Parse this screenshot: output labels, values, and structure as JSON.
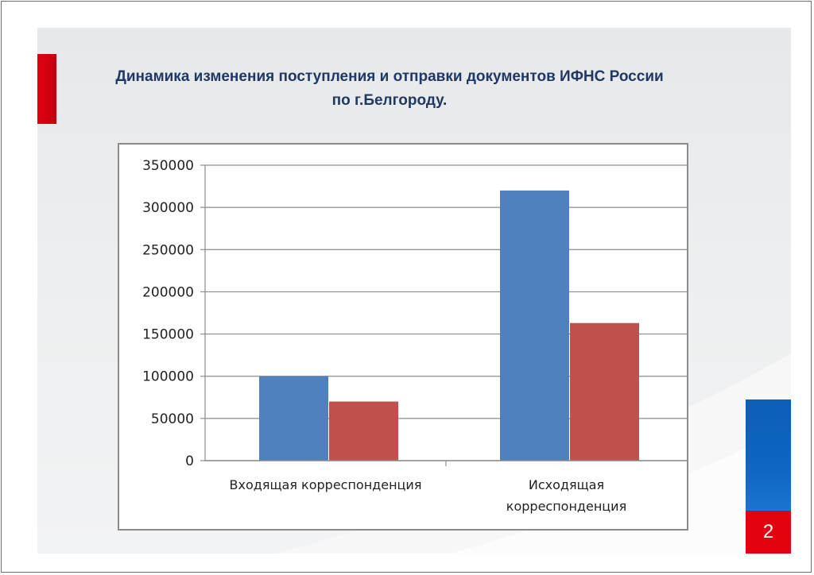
{
  "slide": {
    "title_line1": "Динамика изменения поступления и отправки документов ИФНС России",
    "title_line2": "по г.Белгороду.",
    "page_number": "2"
  },
  "colors": {
    "accent_red": "#e3000f",
    "accent_blue": "#0e66c2",
    "title": "#1f3864"
  },
  "chart_data": {
    "type": "bar",
    "title": "",
    "xlabel": "",
    "ylabel": "",
    "categories": [
      [
        "Входящая  корреспонденция"
      ],
      [
        "Исходящая",
        "корреспонденция"
      ]
    ],
    "series": [
      {
        "color": "#4f81bd",
        "values": [
          100000,
          320000
        ]
      },
      {
        "color": "#c0504d",
        "values": [
          70000,
          163000
        ]
      }
    ],
    "ylim": [
      0,
      350000
    ],
    "yticks": [
      0,
      50000,
      100000,
      150000,
      200000,
      250000,
      300000,
      350000
    ],
    "grid": true,
    "legend": "none"
  }
}
